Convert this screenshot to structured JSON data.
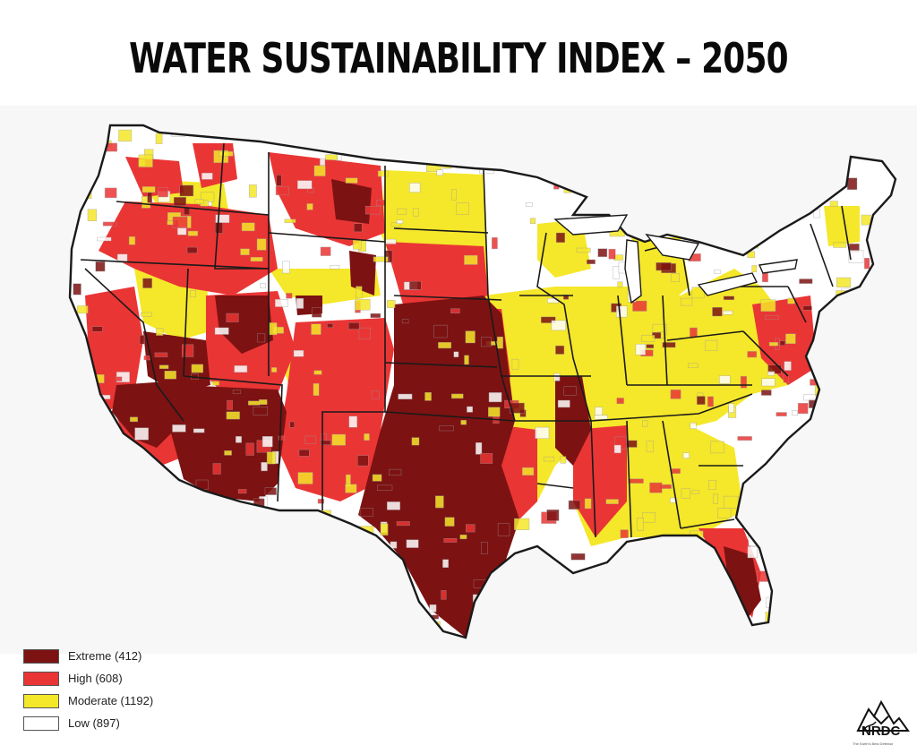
{
  "title": "WATER SUSTAINABILITY INDEX – 2050",
  "colors": {
    "extreme": "#7d1212",
    "high": "#ea3535",
    "moderate": "#f5e72a",
    "low": "#ffffff",
    "border": "#1a1a1a"
  },
  "legend": [
    {
      "key": "extreme",
      "label": "Extreme (412)"
    },
    {
      "key": "high",
      "label": "High (608)"
    },
    {
      "key": "moderate",
      "label": "Moderate (1192)"
    },
    {
      "key": "low",
      "label": "Low (897)"
    }
  ],
  "logo": {
    "text": "NRDC",
    "tagline": "The Earth's Best Defense",
    "icon": "mountain-bird-icon"
  }
}
